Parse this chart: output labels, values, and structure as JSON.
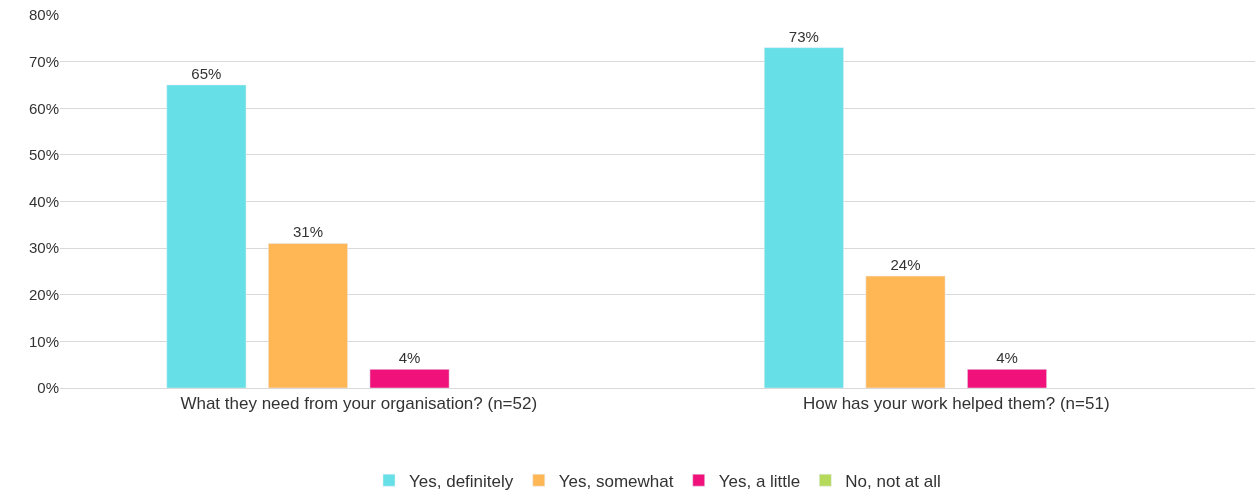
{
  "chart_data": {
    "type": "bar",
    "categories": [
      "What they need from your organisation? (n=52)",
      "How has your work helped them? (n=51)"
    ],
    "series": [
      {
        "name": "Yes, definitely",
        "color": "#66e0e6",
        "values": [
          65,
          73
        ],
        "value_labels": [
          "65%",
          "73%"
        ]
      },
      {
        "name": "Yes, somewhat",
        "color": "#ffb655",
        "values": [
          31,
          24
        ],
        "value_labels": [
          "31%",
          "24%"
        ]
      },
      {
        "name": "Yes, a little",
        "color": "#f0127a",
        "values": [
          4,
          4
        ],
        "value_labels": [
          "4%",
          "4%"
        ]
      },
      {
        "name": "No, not at all",
        "color": "#b5d95a",
        "values": [
          null,
          null
        ],
        "value_labels": [
          null,
          null
        ]
      }
    ],
    "ylim": [
      0,
      80
    ],
    "yticks": [
      {
        "value": 0,
        "label": "0%"
      },
      {
        "value": 10,
        "label": "10%"
      },
      {
        "value": 20,
        "label": "20%"
      },
      {
        "value": 30,
        "label": "30%"
      },
      {
        "value": 40,
        "label": "40%"
      },
      {
        "value": 50,
        "label": "50%"
      },
      {
        "value": 60,
        "label": "60%"
      },
      {
        "value": 70,
        "label": "70%"
      },
      {
        "value": 80,
        "label": "80%"
      }
    ],
    "grid": "y",
    "legend": "bottom"
  }
}
